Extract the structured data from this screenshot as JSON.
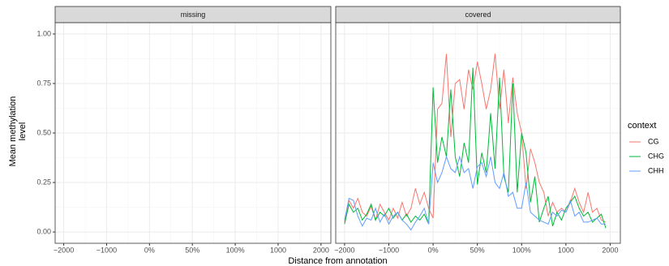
{
  "chart_data": {
    "type": "line",
    "x_label": "Distance from annotation",
    "y_label": "Mean methylation\nlevel",
    "facets": [
      "missing",
      "covered"
    ],
    "data_facet": 1,
    "legend_title": "context",
    "legend": "right",
    "grid": true,
    "xlim": [
      -2200,
      4230
    ],
    "ylim": [
      -0.057,
      1.057
    ],
    "xticks": [
      {
        "value": -2000,
        "label": "−2000"
      },
      {
        "value": -1000,
        "label": "−1000"
      },
      {
        "value": 0,
        "label": "0%"
      },
      {
        "value": 1000,
        "label": "50%"
      },
      {
        "value": 2000,
        "label": "100%"
      },
      {
        "value": 3000,
        "label": "1000"
      },
      {
        "value": 4000,
        "label": "2000"
      }
    ],
    "yticks": [
      {
        "value": 0,
        "label": "0.00"
      },
      {
        "value": 0.25,
        "label": "0.25"
      },
      {
        "value": 0.5,
        "label": "0.50"
      },
      {
        "value": 0.75,
        "label": "0.75"
      },
      {
        "value": 1,
        "label": "1.00"
      }
    ],
    "x": [
      -2000,
      -1900,
      -1800,
      -1700,
      -1600,
      -1500,
      -1400,
      -1300,
      -1200,
      -1100,
      -1000,
      -900,
      -800,
      -700,
      -600,
      -500,
      -400,
      -300,
      -200,
      -100,
      0,
      100,
      200,
      300,
      400,
      500,
      600,
      700,
      800,
      900,
      1000,
      1100,
      1200,
      1300,
      1400,
      1500,
      1600,
      1700,
      1800,
      1900,
      2000,
      2100,
      2200,
      2300,
      2400,
      2500,
      2600,
      2700,
      2800,
      2900,
      3000,
      3100,
      3200,
      3300,
      3400,
      3500,
      3600,
      3700,
      3800,
      3900
    ],
    "series": [
      {
        "name": "CG",
        "color": "#f8766d",
        "values": [
          0.05,
          0.16,
          0.12,
          0.17,
          0.1,
          0.08,
          0.13,
          0.06,
          0.14,
          0.1,
          0.06,
          0.12,
          0.07,
          0.15,
          0.08,
          0.12,
          0.22,
          0.14,
          0.2,
          0.12,
          0.07,
          0.62,
          0.65,
          0.9,
          0.48,
          0.75,
          0.77,
          0.62,
          0.82,
          0.72,
          0.86,
          0.75,
          0.62,
          0.72,
          0.9,
          0.62,
          0.82,
          0.55,
          0.78,
          0.6,
          0.5,
          0.22,
          0.42,
          0.35,
          0.25,
          0.2,
          0.08,
          0.15,
          0.1,
          0.12,
          0.1,
          0.15,
          0.22,
          0.15,
          0.1,
          0.2,
          0.1,
          0.12,
          0.06,
          0.05
        ]
      },
      {
        "name": "CHG",
        "color": "#00ba38",
        "values": [
          0.04,
          0.14,
          0.1,
          0.12,
          0.06,
          0.09,
          0.14,
          0.06,
          0.1,
          0.08,
          0.12,
          0.07,
          0.1,
          0.06,
          0.09,
          0.05,
          0.08,
          0.06,
          0.09,
          0.04,
          0.73,
          0.35,
          0.48,
          0.38,
          0.72,
          0.38,
          0.28,
          0.45,
          0.35,
          0.83,
          0.24,
          0.4,
          0.3,
          0.6,
          0.32,
          0.78,
          0.28,
          0.2,
          0.75,
          0.2,
          0.5,
          0.4,
          0.15,
          0.28,
          0.05,
          0.12,
          0.18,
          0.03,
          0.1,
          0.06,
          0.12,
          0.15,
          0.18,
          0.12,
          0.08,
          0.1,
          0.05,
          0.07,
          0.09,
          0.02
        ]
      },
      {
        "name": "CHH",
        "color": "#619cff",
        "values": [
          0.06,
          0.17,
          0.16,
          0.08,
          0.03,
          0.07,
          0.06,
          0.12,
          0.05,
          0.09,
          0.04,
          0.08,
          0.1,
          0.06,
          0.04,
          0.01,
          0.05,
          0.08,
          0.12,
          0.04,
          0.35,
          0.25,
          0.3,
          0.38,
          0.32,
          0.3,
          0.38,
          0.3,
          0.32,
          0.22,
          0.33,
          0.35,
          0.28,
          0.38,
          0.25,
          0.22,
          0.3,
          0.18,
          0.2,
          0.12,
          0.12,
          0.25,
          0.1,
          0.08,
          0.06,
          0.05,
          0.04,
          0.1,
          0.08,
          0.11,
          0.1,
          0.16,
          0.08,
          0.1,
          0.05,
          0.05,
          0.06,
          0.07,
          0.04,
          0.04
        ]
      }
    ]
  }
}
